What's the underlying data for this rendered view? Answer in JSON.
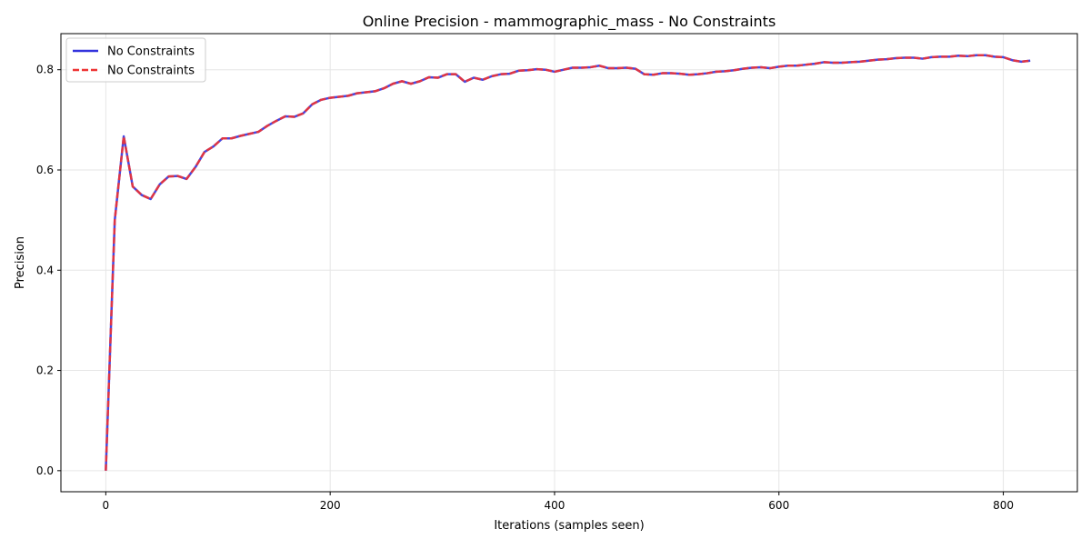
{
  "chart_data": {
    "type": "line",
    "title": "Online Precision - mammographic_mass - No Constraints",
    "xlabel": "Iterations (samples seen)",
    "ylabel": "Precision",
    "xlim": [
      -40,
      866
    ],
    "ylim": [
      -0.042,
      0.872
    ],
    "xticks": [
      0,
      200,
      400,
      600,
      800
    ],
    "yticks": [
      0.0,
      0.2,
      0.4,
      0.6,
      0.8
    ],
    "xtick_labels": [
      "0",
      "200",
      "400",
      "600",
      "800"
    ],
    "ytick_labels": [
      "0.0",
      "0.2",
      "0.4",
      "0.6",
      "0.8"
    ],
    "grid": true,
    "legend_position": "upper-left",
    "x": [
      0,
      8,
      16,
      24,
      32,
      40,
      48,
      56,
      64,
      72,
      80,
      88,
      96,
      104,
      112,
      120,
      128,
      136,
      144,
      152,
      160,
      168,
      176,
      184,
      192,
      200,
      208,
      216,
      224,
      232,
      240,
      248,
      256,
      264,
      272,
      280,
      288,
      296,
      304,
      312,
      320,
      328,
      336,
      344,
      352,
      360,
      368,
      376,
      384,
      392,
      400,
      408,
      416,
      424,
      432,
      440,
      448,
      456,
      464,
      472,
      480,
      488,
      496,
      504,
      512,
      520,
      528,
      536,
      544,
      552,
      560,
      568,
      576,
      584,
      592,
      600,
      608,
      616,
      624,
      632,
      640,
      648,
      656,
      664,
      672,
      680,
      688,
      696,
      704,
      712,
      720,
      728,
      736,
      744,
      752,
      760,
      768,
      776,
      784,
      792,
      800,
      808,
      816,
      824
    ],
    "series": [
      {
        "name": "No Constraints",
        "color": "#3333dd",
        "style": "solid",
        "values": [
          0.0,
          0.5,
          0.667,
          0.567,
          0.55,
          0.542,
          0.571,
          0.587,
          0.588,
          0.582,
          0.606,
          0.636,
          0.647,
          0.663,
          0.663,
          0.668,
          0.672,
          0.676,
          0.688,
          0.698,
          0.707,
          0.706,
          0.713,
          0.731,
          0.74,
          0.744,
          0.746,
          0.748,
          0.753,
          0.755,
          0.757,
          0.763,
          0.772,
          0.777,
          0.772,
          0.777,
          0.785,
          0.784,
          0.791,
          0.791,
          0.776,
          0.784,
          0.78,
          0.787,
          0.791,
          0.792,
          0.798,
          0.799,
          0.801,
          0.8,
          0.796,
          0.8,
          0.804,
          0.804,
          0.805,
          0.808,
          0.803,
          0.803,
          0.804,
          0.802,
          0.791,
          0.79,
          0.793,
          0.793,
          0.792,
          0.79,
          0.791,
          0.793,
          0.796,
          0.797,
          0.799,
          0.802,
          0.804,
          0.805,
          0.803,
          0.806,
          0.808,
          0.808,
          0.81,
          0.812,
          0.815,
          0.814,
          0.814,
          0.815,
          0.816,
          0.818,
          0.82,
          0.821,
          0.823,
          0.824,
          0.824,
          0.822,
          0.825,
          0.826,
          0.826,
          0.828,
          0.827,
          0.829,
          0.829,
          0.826,
          0.825,
          0.819,
          0.816,
          0.818
        ]
      },
      {
        "name": "No Constraints",
        "color": "#ee3333",
        "style": "dashed",
        "values": [
          0.0,
          0.5,
          0.667,
          0.567,
          0.55,
          0.542,
          0.571,
          0.587,
          0.588,
          0.582,
          0.606,
          0.636,
          0.647,
          0.663,
          0.663,
          0.668,
          0.672,
          0.676,
          0.688,
          0.698,
          0.707,
          0.706,
          0.713,
          0.731,
          0.74,
          0.744,
          0.746,
          0.748,
          0.753,
          0.755,
          0.757,
          0.763,
          0.772,
          0.777,
          0.772,
          0.777,
          0.785,
          0.784,
          0.791,
          0.791,
          0.776,
          0.784,
          0.78,
          0.787,
          0.791,
          0.792,
          0.798,
          0.799,
          0.801,
          0.8,
          0.796,
          0.8,
          0.804,
          0.804,
          0.805,
          0.808,
          0.803,
          0.803,
          0.804,
          0.802,
          0.791,
          0.79,
          0.793,
          0.793,
          0.792,
          0.79,
          0.791,
          0.793,
          0.796,
          0.797,
          0.799,
          0.802,
          0.804,
          0.805,
          0.803,
          0.806,
          0.808,
          0.808,
          0.81,
          0.812,
          0.815,
          0.814,
          0.814,
          0.815,
          0.816,
          0.818,
          0.82,
          0.821,
          0.823,
          0.824,
          0.824,
          0.822,
          0.825,
          0.826,
          0.826,
          0.828,
          0.827,
          0.829,
          0.829,
          0.826,
          0.825,
          0.819,
          0.816,
          0.818
        ]
      }
    ]
  }
}
